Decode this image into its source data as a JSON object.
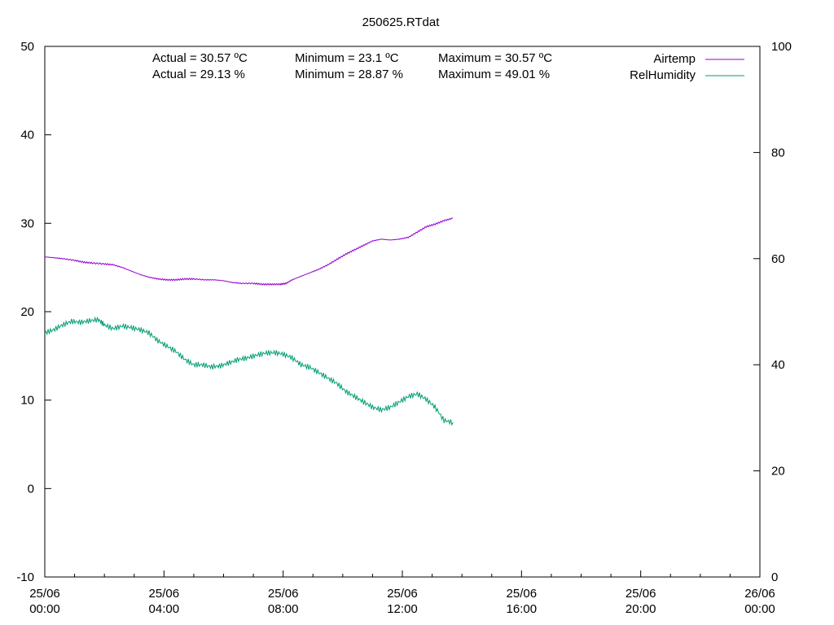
{
  "chart_data": {
    "type": "line",
    "title": "250625.RTdat",
    "xlabel": "",
    "ylabel": "",
    "y2label": "",
    "x_range": [
      "25/06 00:00",
      "26/06 00:00"
    ],
    "ylim": [
      -10,
      50
    ],
    "y2lim": [
      0,
      100
    ],
    "grid": false,
    "legend_position": "top-right",
    "x_ticks": [
      {
        "line1": "25/06",
        "line2": "00:00",
        "hour": 0
      },
      {
        "line1": "25/06",
        "line2": "04:00",
        "hour": 4
      },
      {
        "line1": "25/06",
        "line2": "08:00",
        "hour": 8
      },
      {
        "line1": "25/06",
        "line2": "12:00",
        "hour": 12
      },
      {
        "line1": "25/06",
        "line2": "16:00",
        "hour": 16
      },
      {
        "line1": "25/06",
        "line2": "20:00",
        "hour": 20
      },
      {
        "line1": "26/06",
        "line2": "00:00",
        "hour": 24
      }
    ],
    "y_ticks": [
      -10,
      0,
      10,
      20,
      30,
      40,
      50
    ],
    "y2_ticks": [
      0,
      20,
      40,
      60,
      80,
      100
    ],
    "stats": {
      "airtemp": {
        "actual": "Actual = 30.57 ºC",
        "minimum": "Minimum = 23.1 ºC",
        "maximum": "Maximum = 30.57 ºC"
      },
      "humidity": {
        "actual": "Actual = 29.13 %",
        "minimum": "Minimum = 28.87 %",
        "maximum": "Maximum = 49.01 %"
      }
    },
    "series": [
      {
        "name": "Airtemp",
        "axis": "y",
        "color": "#9400d3",
        "points": [
          [
            0.0,
            26.2
          ],
          [
            0.3,
            26.1
          ],
          [
            0.6,
            26.0
          ],
          [
            1.0,
            25.8
          ],
          [
            1.3,
            25.6
          ],
          [
            1.6,
            25.5
          ],
          [
            2.0,
            25.4
          ],
          [
            2.3,
            25.3
          ],
          [
            2.6,
            25.0
          ],
          [
            2.9,
            24.6
          ],
          [
            3.2,
            24.2
          ],
          [
            3.5,
            23.9
          ],
          [
            3.8,
            23.7
          ],
          [
            4.1,
            23.6
          ],
          [
            4.4,
            23.6
          ],
          [
            4.7,
            23.7
          ],
          [
            5.0,
            23.7
          ],
          [
            5.4,
            23.6
          ],
          [
            5.7,
            23.6
          ],
          [
            6.0,
            23.5
          ],
          [
            6.3,
            23.3
          ],
          [
            6.6,
            23.2
          ],
          [
            7.0,
            23.2
          ],
          [
            7.3,
            23.1
          ],
          [
            7.6,
            23.1
          ],
          [
            7.9,
            23.1
          ],
          [
            8.1,
            23.2
          ],
          [
            8.3,
            23.6
          ],
          [
            8.6,
            24.0
          ],
          [
            8.9,
            24.4
          ],
          [
            9.2,
            24.8
          ],
          [
            9.5,
            25.3
          ],
          [
            9.8,
            25.9
          ],
          [
            10.1,
            26.5
          ],
          [
            10.4,
            27.0
          ],
          [
            10.7,
            27.5
          ],
          [
            11.0,
            28.0
          ],
          [
            11.3,
            28.2
          ],
          [
            11.6,
            28.1
          ],
          [
            11.9,
            28.2
          ],
          [
            12.2,
            28.4
          ],
          [
            12.5,
            29.0
          ],
          [
            12.8,
            29.6
          ],
          [
            13.1,
            29.9
          ],
          [
            13.4,
            30.3
          ],
          [
            13.7,
            30.57
          ]
        ]
      },
      {
        "name": "RelHumidity",
        "axis": "y2",
        "color": "#009e73",
        "points": [
          [
            0.0,
            46.0
          ],
          [
            0.3,
            46.6
          ],
          [
            0.6,
            47.5
          ],
          [
            0.9,
            48.2
          ],
          [
            1.2,
            48.0
          ],
          [
            1.5,
            48.3
          ],
          [
            1.8,
            48.5
          ],
          [
            2.0,
            47.5
          ],
          [
            2.3,
            46.8
          ],
          [
            2.6,
            47.3
          ],
          [
            2.9,
            47.0
          ],
          [
            3.2,
            46.6
          ],
          [
            3.5,
            46.0
          ],
          [
            3.8,
            44.5
          ],
          [
            4.1,
            43.5
          ],
          [
            4.4,
            42.5
          ],
          [
            4.7,
            41.0
          ],
          [
            5.0,
            40.0
          ],
          [
            5.3,
            40.0
          ],
          [
            5.6,
            39.6
          ],
          [
            5.9,
            39.8
          ],
          [
            6.2,
            40.4
          ],
          [
            6.5,
            41.0
          ],
          [
            6.8,
            41.3
          ],
          [
            7.1,
            41.8
          ],
          [
            7.4,
            42.2
          ],
          [
            7.7,
            42.3
          ],
          [
            8.0,
            42.0
          ],
          [
            8.3,
            41.3
          ],
          [
            8.6,
            40.0
          ],
          [
            8.9,
            39.5
          ],
          [
            9.2,
            38.5
          ],
          [
            9.5,
            37.5
          ],
          [
            9.8,
            36.5
          ],
          [
            10.1,
            35.0
          ],
          [
            10.4,
            34.0
          ],
          [
            10.7,
            33.0
          ],
          [
            11.0,
            32.0
          ],
          [
            11.3,
            31.5
          ],
          [
            11.6,
            32.0
          ],
          [
            11.9,
            33.0
          ],
          [
            12.2,
            34.0
          ],
          [
            12.5,
            34.5
          ],
          [
            12.8,
            33.5
          ],
          [
            13.1,
            32.0
          ],
          [
            13.4,
            29.5
          ],
          [
            13.7,
            29.13
          ]
        ]
      }
    ]
  }
}
